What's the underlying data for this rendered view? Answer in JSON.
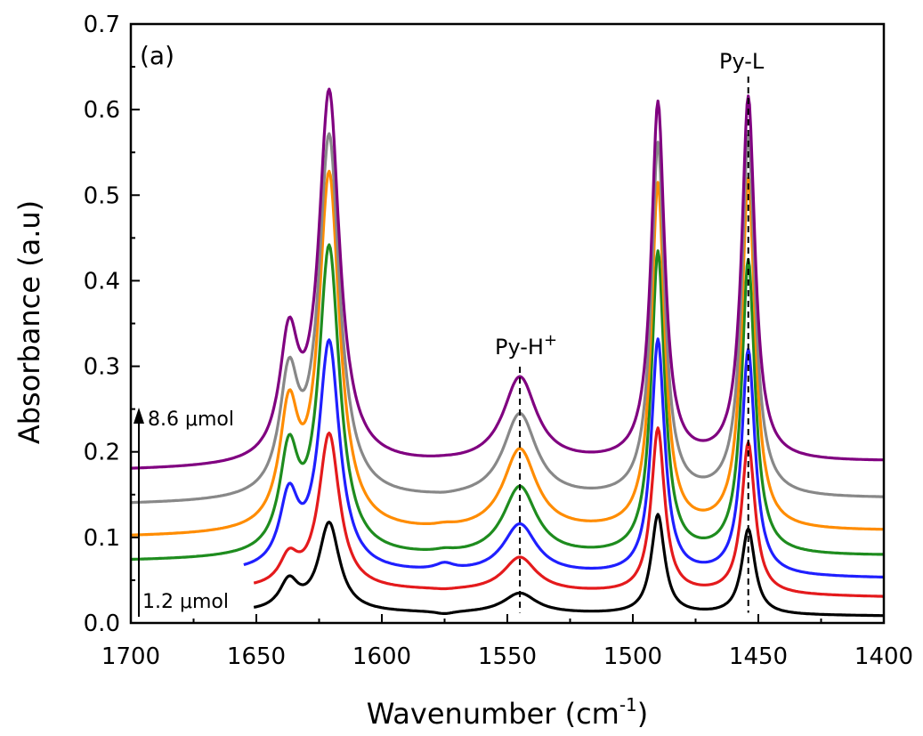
{
  "chart_data": {
    "type": "line",
    "panel_label": "(a)",
    "xlabel": "Wavenumber (cm",
    "xlabel_sup": "-1",
    "xlabel_close": ")",
    "ylabel": "Absorbance (a.u)",
    "xlim": [
      1700,
      1400
    ],
    "ylim": [
      0,
      0.7
    ],
    "x_reversed": true,
    "x_ticks": [
      1700,
      1650,
      1600,
      1550,
      1500,
      1450,
      1400
    ],
    "y_ticks": [
      0.0,
      0.1,
      0.2,
      0.3,
      0.4,
      0.5,
      0.6,
      0.7
    ],
    "y_tick_labels": [
      "0.0",
      "0.1",
      "0.2",
      "0.3",
      "0.4",
      "0.5",
      "0.6",
      "0.7"
    ],
    "grid": false,
    "legend": "none",
    "annotations": [
      {
        "text": "Py-H",
        "sup": "+",
        "x": 1545
      },
      {
        "text": "Py-L",
        "x": 1454
      },
      {
        "text": "8.6 μmol"
      },
      {
        "text": "1.2 μmol"
      }
    ],
    "peak_positions": [
      1637,
      1621,
      1575,
      1545,
      1490,
      1454
    ],
    "series": [
      {
        "color": "#000000",
        "x_start": 1651,
        "baseline": [
          0.013,
          0.008
        ],
        "peaks": [
          0.055,
          0.118,
          0.011,
          0.035,
          0.127,
          0.11
        ]
      },
      {
        "color": "#e41a1c",
        "x_start": 1651,
        "baseline": [
          0.04,
          0.03
        ],
        "peaks": [
          0.087,
          0.222,
          0.04,
          0.077,
          0.228,
          0.211
        ]
      },
      {
        "color": "#1f1fff",
        "x_start": 1655,
        "baseline": [
          0.058,
          0.052
        ],
        "peaks": [
          0.163,
          0.331,
          0.071,
          0.116,
          0.332,
          0.32
        ]
      },
      {
        "color": "#1e8c1e",
        "x_start": 1700,
        "baseline": [
          0.072,
          0.078
        ],
        "peaks": [
          0.22,
          0.442,
          0.088,
          0.16,
          0.435,
          0.425
        ]
      },
      {
        "color": "#ff8c00",
        "x_start": 1700,
        "baseline": [
          0.1,
          0.107
        ],
        "peaks": [
          0.272,
          0.528,
          0.118,
          0.204,
          0.515,
          0.52
        ]
      },
      {
        "color": "#888888",
        "x_start": 1700,
        "baseline": [
          0.138,
          0.145
        ],
        "peaks": [
          0.31,
          0.572,
          0.153,
          0.245,
          0.562,
          0.57
        ]
      },
      {
        "color": "#800080",
        "x_start": 1700,
        "baseline": [
          0.178,
          0.188
        ],
        "peaks": [
          0.357,
          0.624,
          0.196,
          0.288,
          0.61,
          0.616
        ]
      }
    ]
  }
}
